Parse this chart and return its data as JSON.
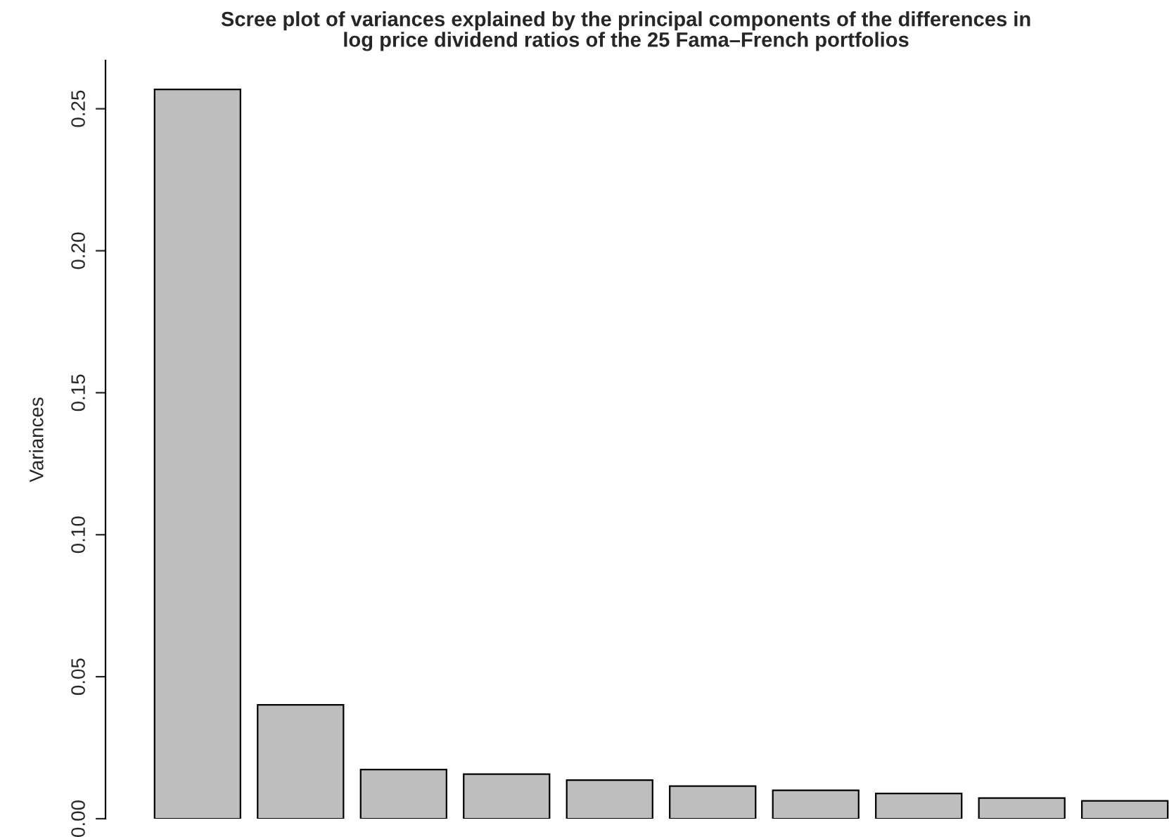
{
  "chart_data": {
    "type": "bar",
    "title": "Scree plot of variances explained by the principal components of the differences in\nlog price dividend ratios of the 25 Fama–French portfolios",
    "ylabel": "Variances",
    "categories": [
      null,
      null,
      null,
      null,
      null,
      null,
      null,
      null,
      null,
      null
    ],
    "values": [
      0.2568,
      0.0401,
      0.0173,
      0.0157,
      0.0136,
      0.0115,
      0.01,
      0.0089,
      0.0073,
      0.0063
    ],
    "color": "#bebebe",
    "ylim": [
      0,
      0.267
    ],
    "yticks": [
      {
        "value": 0,
        "label": "0.00"
      },
      0.05,
      {
        "value": 0.1,
        "label": "0.10"
      },
      0.15,
      {
        "value": 0.2,
        "label": "0.20"
      },
      0.25
    ],
    "grid": false,
    "legend": false
  }
}
